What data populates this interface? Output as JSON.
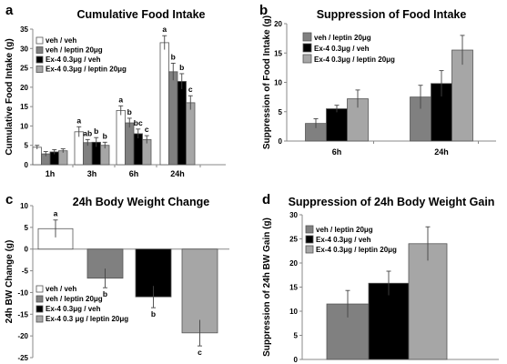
{
  "panels": [
    {
      "id": "a",
      "panel_label": "a",
      "type": "bar",
      "title": "Cumulative Food Intake",
      "ylabel": "Cumulative Food Intake (g)",
      "ylim": [
        0,
        35
      ],
      "yticks": [
        0,
        5,
        10,
        15,
        20,
        25,
        30,
        35
      ],
      "categories": [
        "1h",
        "3h",
        "6h",
        "24h"
      ],
      "legend": [
        "veh / veh",
        "veh / leptin 20μg",
        "Ex-4 0.3μg / veh",
        "Ex-4 0.3μg / leptin 20μg"
      ],
      "series": [
        {
          "name": "veh / veh",
          "color": "#ffffff",
          "values": [
            4.5,
            8.5,
            14.0,
            31.5
          ],
          "errors": [
            0.5,
            1.3,
            1.2,
            1.8
          ],
          "sig": [
            "",
            "a",
            "a",
            "a"
          ]
        },
        {
          "name": "veh / leptin 20μg",
          "color": "#808080",
          "values": [
            2.8,
            5.7,
            10.8,
            24.0
          ],
          "errors": [
            0.6,
            0.8,
            1.2,
            2.2
          ],
          "sig": [
            "",
            "ab",
            "b",
            "b"
          ]
        },
        {
          "name": "Ex-4 0.3μg / veh",
          "color": "#000000",
          "values": [
            3.3,
            5.8,
            8.0,
            21.5
          ],
          "errors": [
            0.6,
            1.2,
            1.2,
            2.0
          ],
          "sig": [
            "",
            "b",
            "bc",
            "b"
          ]
        },
        {
          "name": "Ex-4 0.3μg / leptin 20μg",
          "color": "#a6a6a6",
          "values": [
            3.6,
            5.0,
            6.5,
            16.0
          ],
          "errors": [
            0.5,
            0.8,
            1.0,
            1.8
          ],
          "sig": [
            "",
            "b",
            "c",
            "c"
          ]
        }
      ]
    },
    {
      "id": "b",
      "panel_label": "b",
      "type": "bar",
      "title": "Suppression of Food Intake",
      "ylabel": "Suppression of Food Intake (g)",
      "ylim": [
        0,
        20
      ],
      "yticks": [
        0,
        5,
        10,
        15,
        20
      ],
      "categories": [
        "6h",
        "24h"
      ],
      "legend": [
        "veh / leptin 20μg",
        "Ex-4 0.3μg / veh",
        "Ex-4 0.3μg / leptin 20μg"
      ],
      "series": [
        {
          "name": "veh / leptin 20μg",
          "color": "#808080",
          "values": [
            3.0,
            7.5
          ],
          "errors": [
            0.8,
            2.0
          ],
          "sig": [
            "",
            ""
          ]
        },
        {
          "name": "Ex-4 0.3μg / veh",
          "color": "#000000",
          "values": [
            5.5,
            9.8
          ],
          "errors": [
            0.6,
            2.2
          ],
          "sig": [
            "",
            ""
          ]
        },
        {
          "name": "Ex-4 0.3μg / leptin 20μg",
          "color": "#a6a6a6",
          "values": [
            7.2,
            15.5
          ],
          "errors": [
            1.5,
            2.5
          ],
          "sig": [
            "",
            ""
          ]
        }
      ]
    },
    {
      "id": "c",
      "panel_label": "c",
      "type": "bar",
      "title": "24h Body Weight Change",
      "ylabel": "24h BW Change (g)",
      "ylim": [
        -25,
        10
      ],
      "yticks": [
        -25,
        -20,
        -15,
        -10,
        -5,
        0,
        5,
        10
      ],
      "categories": [
        ""
      ],
      "legend": [
        "veh / veh",
        "veh / leptin 20μg",
        "Ex-4 0.3μg / veh",
        "Ex-4 0.3 μg / leptin 20μg"
      ],
      "series": [
        {
          "name": "veh / veh",
          "color": "#ffffff",
          "values": [
            4.7
          ],
          "errors": [
            2.0
          ],
          "sig": [
            "a"
          ]
        },
        {
          "name": "veh / leptin 20μg",
          "color": "#808080",
          "values": [
            -6.7
          ],
          "errors": [
            2.2
          ],
          "sig": [
            "b"
          ]
        },
        {
          "name": "Ex-4 0.3μg / veh",
          "color": "#000000",
          "values": [
            -11.0
          ],
          "errors": [
            2.5
          ],
          "sig": [
            "b"
          ]
        },
        {
          "name": "Ex-4 0.3 μg / leptin 20μg",
          "color": "#a6a6a6",
          "values": [
            -19.3
          ],
          "errors": [
            3.0
          ],
          "sig": [
            "c"
          ]
        }
      ]
    },
    {
      "id": "d",
      "panel_label": "d",
      "type": "bar",
      "title": "Suppression of 24h Body Weight Gain",
      "ylabel": "Suppression of 24h BW Gain (g)",
      "ylim": [
        0,
        30
      ],
      "yticks": [
        0,
        5,
        10,
        15,
        20,
        25,
        30
      ],
      "categories": [
        ""
      ],
      "legend": [
        "veh / leptin 20μg",
        "Ex-4 0.3μg / veh",
        "Ex-4 0.3μg / leptin 20μg"
      ],
      "series": [
        {
          "name": "veh / leptin 20μg",
          "color": "#808080",
          "values": [
            11.5
          ],
          "errors": [
            2.8
          ],
          "sig": [
            ""
          ]
        },
        {
          "name": "Ex-4 0.3μg / veh",
          "color": "#000000",
          "values": [
            15.8
          ],
          "errors": [
            2.5
          ],
          "sig": [
            ""
          ]
        },
        {
          "name": "Ex-4 0.3μg / leptin 20μg",
          "color": "#a6a6a6",
          "values": [
            24.0
          ],
          "errors": [
            3.5
          ],
          "sig": [
            ""
          ]
        }
      ]
    }
  ]
}
